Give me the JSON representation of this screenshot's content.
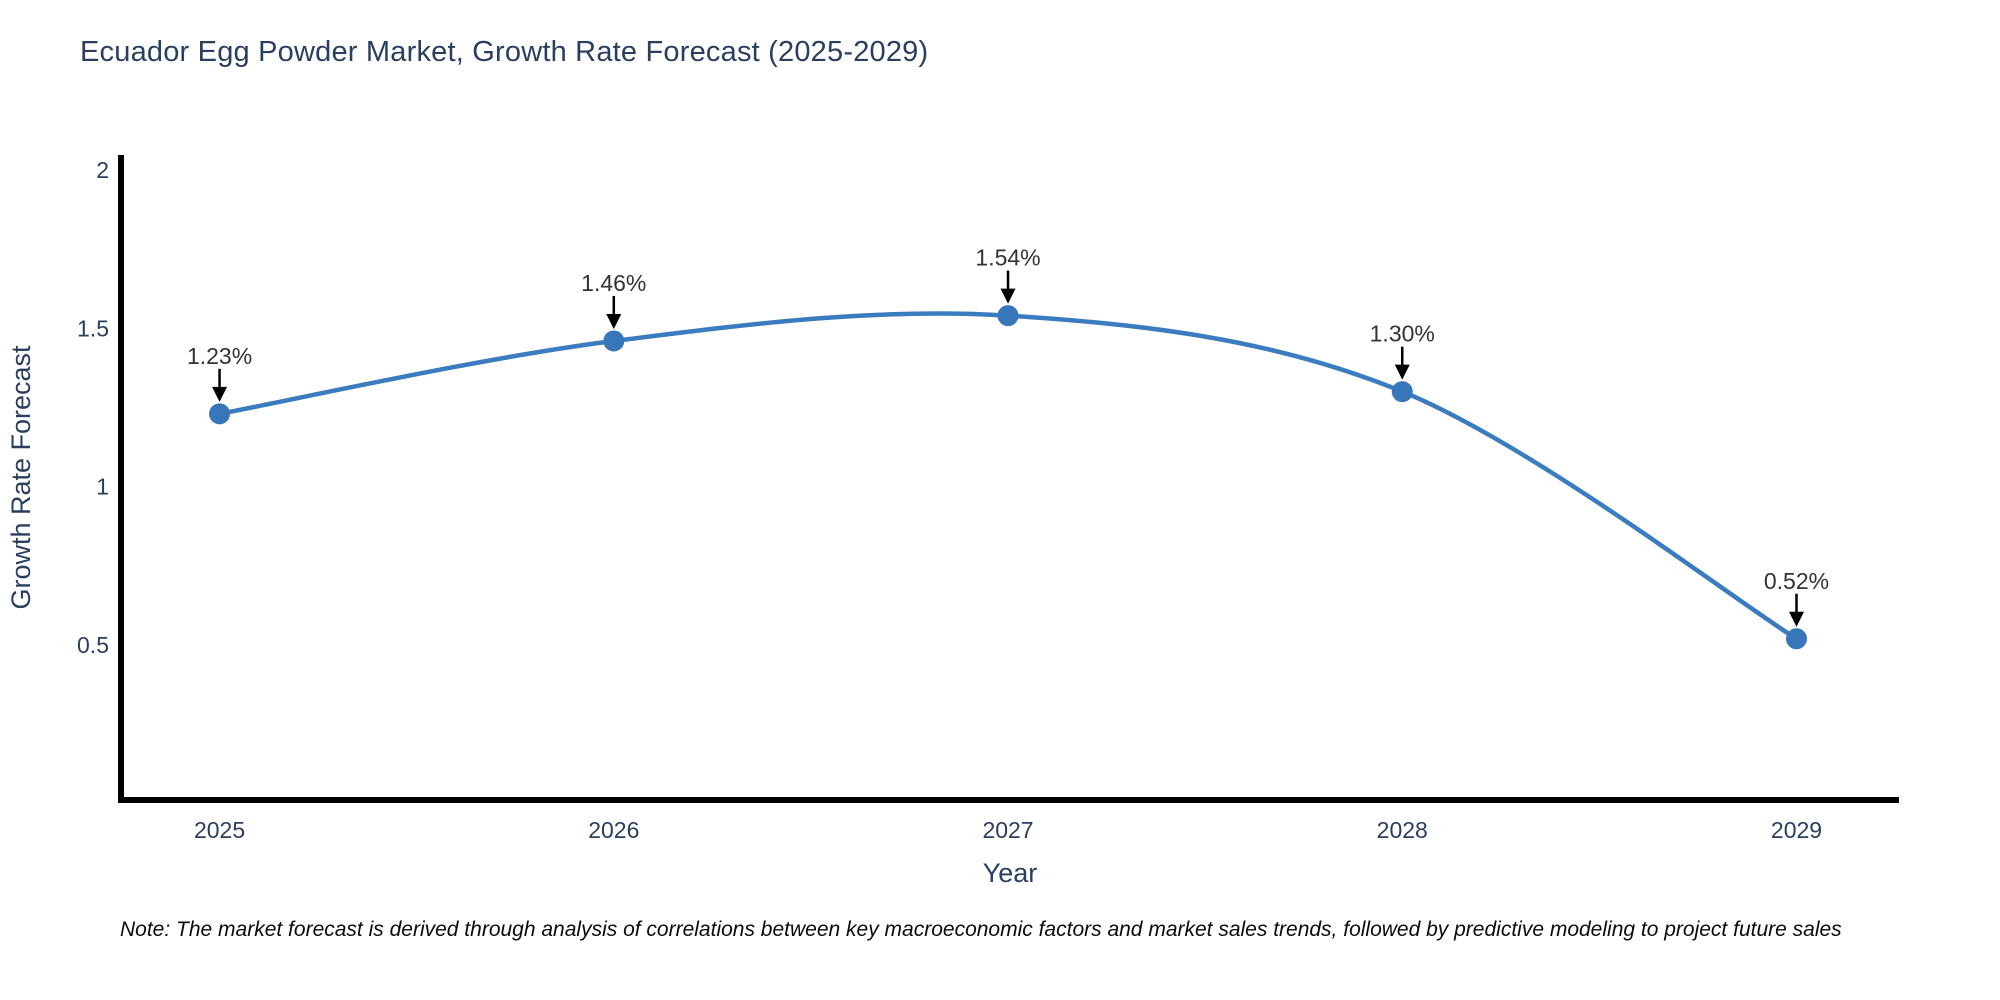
{
  "page": {
    "title": "Ecuador Egg Powder Market, Growth Rate Forecast (2025-2029)"
  },
  "chart_data": {
    "type": "line",
    "title": "Ecuador Egg Powder Market, Growth Rate Forecast (2025-2029)",
    "xlabel": "Year",
    "ylabel": "Growth Rate Forecast",
    "x": [
      2025,
      2026,
      2027,
      2028,
      2029
    ],
    "values": [
      1.23,
      1.46,
      1.54,
      1.3,
      0.52
    ],
    "point_labels": [
      "1.23%",
      "1.46%",
      "1.54%",
      "1.30%",
      "0.52%"
    ],
    "x_tick_labels": [
      "2025",
      "2026",
      "2027",
      "2028",
      "2029"
    ],
    "x_tick_values": [
      2025,
      2026,
      2027,
      2028,
      2029
    ],
    "y_tick_labels": [
      "0.5",
      "1",
      "1.5",
      "2"
    ],
    "y_tick_values": [
      0.5,
      1,
      1.5,
      2
    ],
    "xlim": [
      2024.75,
      2029.26
    ],
    "ylim": [
      0.011,
      2.047
    ],
    "grid": false,
    "legend": "none",
    "line_shape": "spline",
    "colors": {
      "line": "#3a7cbf",
      "marker": "#3776b8",
      "axis_line": "#000000",
      "tick_text": "#2a3f5f",
      "axis_title_text": "#2a3f5f",
      "annotation_text": "#333333",
      "annotation_arrow": "#000000"
    }
  },
  "note": {
    "text": "Note: The market forecast is derived through analysis of correlations between key macroeconomic factors and market sales trends, followed by predictive modeling to project future sales"
  }
}
